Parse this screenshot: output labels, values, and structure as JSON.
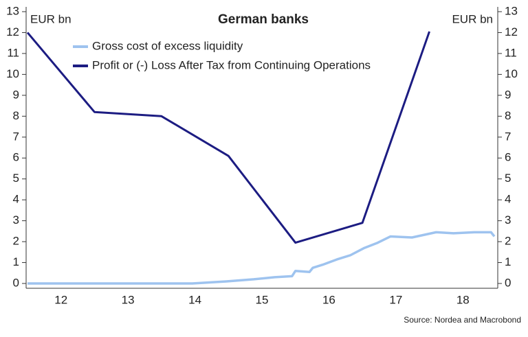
{
  "chart_data": {
    "type": "line",
    "title": "German banks",
    "y_label": "EUR bn",
    "y2_label": "EUR bn",
    "source": "Source: Nordea and Macrobond",
    "xlim": [
      2012,
      2019
    ],
    "xticks": [
      {
        "value": 2012.5,
        "label": "12"
      },
      {
        "value": 2013.5,
        "label": "13"
      },
      {
        "value": 2014.5,
        "label": "14"
      },
      {
        "value": 2015.5,
        "label": "15"
      },
      {
        "value": 2016.5,
        "label": "16"
      },
      {
        "value": 2017.5,
        "label": "17"
      },
      {
        "value": 2018.5,
        "label": "18"
      }
    ],
    "ylim": [
      0,
      13
    ],
    "yticks": [
      0,
      1,
      2,
      3,
      4,
      5,
      6,
      7,
      8,
      9,
      10,
      11,
      12,
      13
    ],
    "y2lim": [
      0,
      13
    ],
    "y2ticks": [
      0,
      1,
      2,
      3,
      4,
      5,
      6,
      7,
      8,
      9,
      10,
      11,
      12,
      13
    ],
    "series": [
      {
        "name": "Gross cost of excess liquidity",
        "color": "#9ec3ef",
        "x": [
          2012,
          2014.46,
          2014.97,
          2015.38,
          2015.69,
          2015.95,
          2016.0,
          2016.21,
          2016.26,
          2016.41,
          2016.62,
          2016.82,
          2017.03,
          2017.23,
          2017.42,
          2017.74,
          2018.1,
          2018.36,
          2018.67,
          2018.92,
          2018.97
        ],
        "values": [
          0,
          0,
          0.1,
          0.2,
          0.3,
          0.35,
          0.6,
          0.55,
          0.75,
          0.9,
          1.15,
          1.35,
          1.7,
          1.95,
          2.25,
          2.2,
          2.45,
          2.4,
          2.45,
          2.45,
          2.25
        ]
      },
      {
        "name": "Profit or (-) Loss After Tax from Continuing Operations",
        "color": "#1c1c82",
        "x": [
          2012,
          2013,
          2014,
          2015,
          2016,
          2017,
          2018
        ],
        "values": [
          12.0,
          8.2,
          8.0,
          6.1,
          1.95,
          2.9,
          12.05
        ]
      }
    ]
  }
}
